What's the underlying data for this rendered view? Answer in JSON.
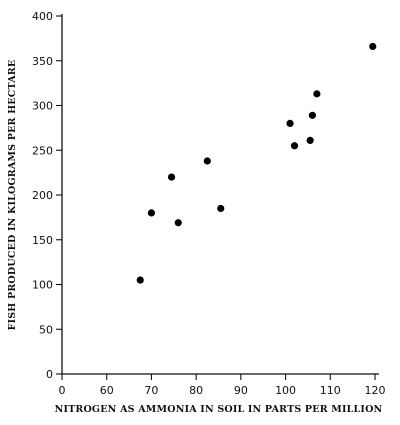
{
  "chart_data": {
    "type": "scatter",
    "title": "",
    "xlabel": "NITROGEN AS AMMONIA IN SOIL IN PARTS PER MILLION",
    "ylabel": "FISH PRODUCED IN KILOGRAMS PER HECTARE",
    "x_tick_labels": [
      "0",
      "60",
      "70",
      "80",
      "90",
      "100",
      "110",
      "120"
    ],
    "x_ticks": [
      0,
      60,
      70,
      80,
      90,
      100,
      110,
      120
    ],
    "y_ticks": [
      0,
      50,
      100,
      150,
      200,
      250,
      300,
      350,
      400
    ],
    "ylim": [
      0,
      400
    ],
    "x_axis_break": "axis starts at 0 then jumps to 60 (broken scale)",
    "grid": false,
    "legend": "none",
    "points": [
      {
        "x": 67.5,
        "y": 105
      },
      {
        "x": 70,
        "y": 180
      },
      {
        "x": 74.5,
        "y": 220
      },
      {
        "x": 76,
        "y": 169
      },
      {
        "x": 82.5,
        "y": 238
      },
      {
        "x": 85.5,
        "y": 185
      },
      {
        "x": 101,
        "y": 280
      },
      {
        "x": 102,
        "y": 255
      },
      {
        "x": 105.5,
        "y": 261
      },
      {
        "x": 106,
        "y": 289
      },
      {
        "x": 107,
        "y": 313
      },
      {
        "x": 119.5,
        "y": 366
      }
    ],
    "marker_color": "#000000"
  }
}
